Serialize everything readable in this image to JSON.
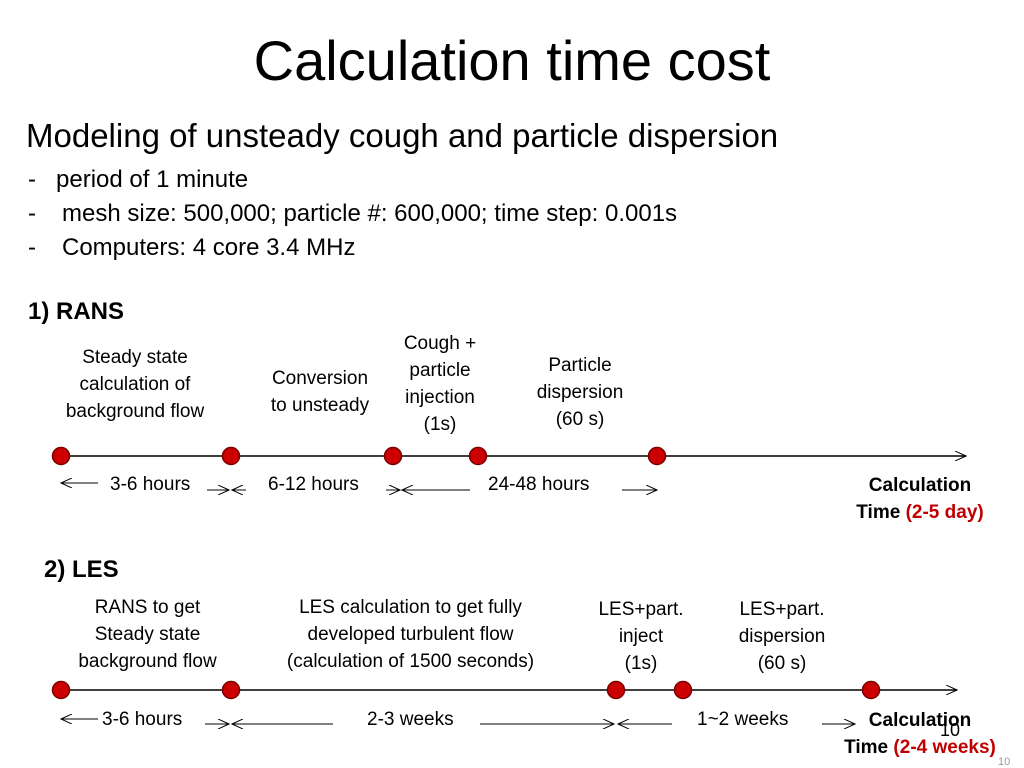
{
  "title": "Calculation time cost",
  "subtitle": "Modeling of unsteady cough and particle dispersion",
  "bullets": [
    {
      "dash": "-",
      "text": "period of 1 minute"
    },
    {
      "dash": "-",
      "text": "mesh size: 500,000; particle #: 600,000;   time step: 0.001s"
    },
    {
      "dash": "-",
      "text": "Computers: 4 core 3.4 MHz"
    }
  ],
  "rans": {
    "heading": "1) RANS",
    "stage_labels": [
      [
        "Steady state",
        "calculation of",
        "background flow"
      ],
      [
        "Conversion",
        "to unsteady"
      ],
      [
        "Cough +",
        "particle",
        "injection",
        "(1s)"
      ],
      [
        "Particle",
        "dispersion",
        "(60 s)"
      ]
    ],
    "durations": [
      "3-6 hours",
      "6-12 hours",
      "24-48 hours"
    ],
    "calc_label": "Calculation",
    "calc_time_word": "Time",
    "calc_value": "(2-5 day)"
  },
  "les": {
    "heading": "2) LES",
    "stage_labels": [
      [
        "RANS to get",
        "Steady state",
        "background flow"
      ],
      [
        "LES calculation to get fully",
        "developed turbulent flow",
        "(calculation of 1500 seconds)"
      ],
      [
        "LES+part.",
        "inject",
        "(1s)"
      ],
      [
        "LES+part.",
        "dispersion",
        "(60 s)"
      ]
    ],
    "durations": [
      "3-6 hours",
      "2-3 weeks",
      "1~2 weeks"
    ],
    "calc_label": "Calculation",
    "calc_time_word": "Time",
    "calc_value": "(2-4 weeks)"
  },
  "page_number": "10",
  "page_number_small": "10",
  "colors": {
    "dot_fill": "#cc0000",
    "dot_stroke": "#7a0000",
    "highlight": "#c00000"
  }
}
